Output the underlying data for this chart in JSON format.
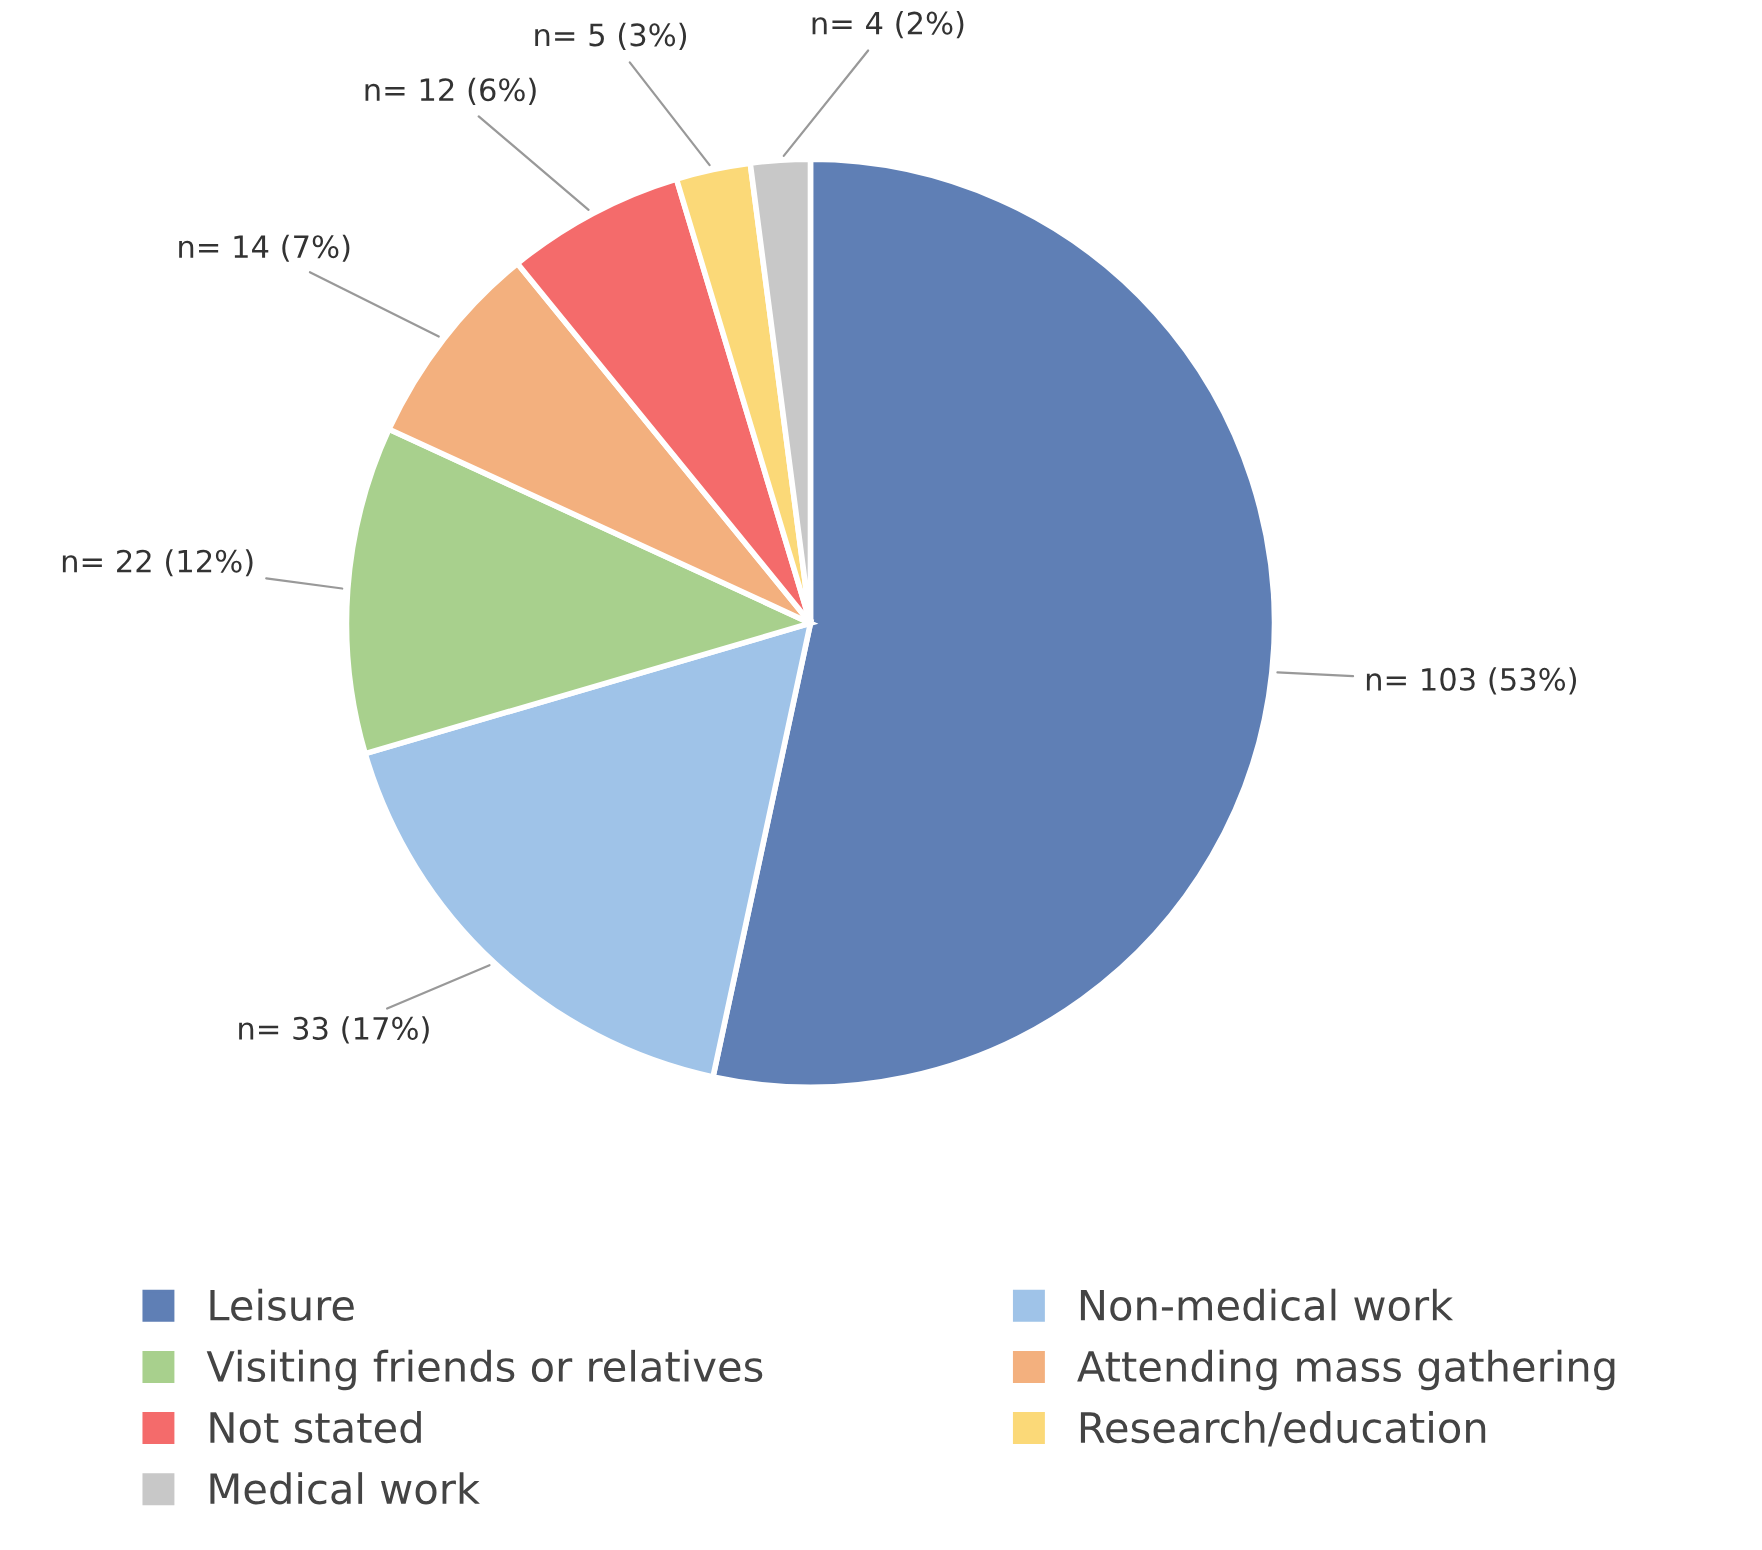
{
  "chart_data": {
    "type": "pie",
    "categories": [
      "Leisure",
      "Non-medical work",
      "Visiting friends or relatives",
      "Attending mass gathering",
      "Not stated",
      "Research/education",
      "Medical work"
    ],
    "values": [
      103,
      33,
      22,
      14,
      12,
      5,
      4
    ],
    "colors": [
      "#5f7fb5",
      "#9fc3e8",
      "#a8d08d",
      "#f3b07e",
      "#f46b6b",
      "#fbd978",
      "#c8c8c8"
    ],
    "value_labels": [
      "n= 103 (53%)",
      "n= 33 (17%)",
      "n= 22 (12%)",
      "n= 14 (7%)",
      "n= 12 (6%)",
      "n= 5 (3%)",
      "n= 4 (2%)"
    ],
    "legend": "bottom"
  }
}
